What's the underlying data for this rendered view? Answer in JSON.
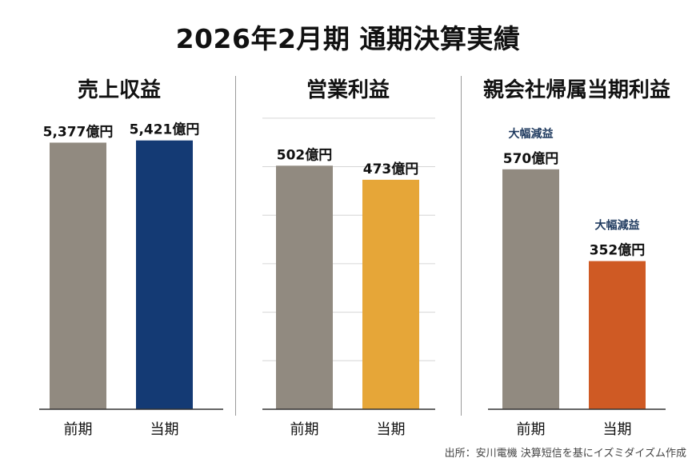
{
  "title": "2026年2月期 通期決算実績",
  "source": "出所：安川電機 決算短信を基にイズミダイズム作成",
  "colors": {
    "prior": "#918a80",
    "revenue_current": "#143a74",
    "op_current": "#e6a638",
    "net_current": "#cf5a24",
    "annotation": "#1f3a5f",
    "gridline": "#d6d6d6",
    "axis": "#333333"
  },
  "chart_data": [
    {
      "type": "bar",
      "title": "売上収益",
      "categories": [
        "前期",
        "当期"
      ],
      "values": [
        5377,
        5421
      ],
      "value_labels": [
        "5,377億円",
        "5,421億円"
      ],
      "annotations": [
        "",
        ""
      ],
      "gridlines": false,
      "ylim": [
        0,
        5900
      ],
      "colors": [
        "#918a80",
        "#143a74"
      ]
    },
    {
      "type": "bar",
      "title": "営業利益",
      "categories": [
        "前期",
        "当期"
      ],
      "values": [
        502,
        473
      ],
      "value_labels": [
        "502億円",
        "473億円"
      ],
      "annotations": [
        "",
        ""
      ],
      "gridlines": true,
      "ylim": [
        0,
        603
      ],
      "colors": [
        "#918a80",
        "#e6a638"
      ]
    },
    {
      "type": "bar",
      "title": "親会社帰属当期利益",
      "categories": [
        "前期",
        "当期"
      ],
      "values": [
        570,
        352
      ],
      "value_labels": [
        "570億円",
        "352億円"
      ],
      "annotations": [
        "大幅減益",
        "大幅減益"
      ],
      "gridlines": false,
      "ylim": [
        0,
        695
      ],
      "colors": [
        "#918a80",
        "#cf5a24"
      ]
    }
  ]
}
